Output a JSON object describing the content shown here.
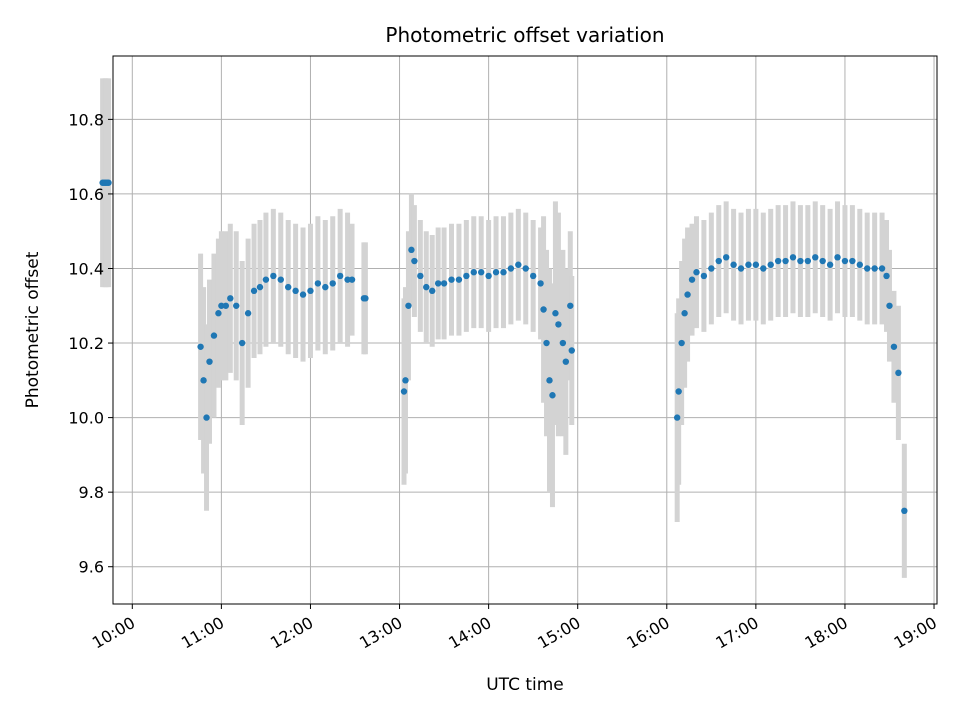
{
  "chart_data": {
    "type": "scatter",
    "title": "Photometric offset variation",
    "xlabel": "UTC time",
    "ylabel": "Photometric offset",
    "xlim": [
      "09:47",
      "19:02"
    ],
    "ylim": [
      9.5,
      10.97
    ],
    "x_ticks": [
      "10:00",
      "11:00",
      "12:00",
      "13:00",
      "14:00",
      "15:00",
      "16:00",
      "17:00",
      "18:00",
      "19:00"
    ],
    "y_ticks": [
      9.6,
      9.8,
      10.0,
      10.2,
      10.4,
      10.6,
      10.8
    ],
    "grid": true,
    "colors": {
      "points": "#1f77b4",
      "error_bars": "#d3d3d3",
      "grid": "#b0b0b0"
    },
    "segments": [
      {
        "x": [
          "09:40",
          "09:41",
          "09:42",
          "09:43",
          "09:44"
        ],
        "y": [
          10.63,
          10.63,
          10.63,
          10.63,
          10.63
        ],
        "err": [
          0.28,
          0.28,
          0.28,
          0.28,
          0.28
        ]
      },
      {
        "x": [
          "10:46",
          "10:48",
          "10:50",
          "10:52",
          "10:55",
          "10:58",
          "11:00",
          "11:03",
          "11:06",
          "11:10",
          "11:14",
          "11:18",
          "11:22",
          "11:26",
          "11:30",
          "11:35",
          "11:40",
          "11:45",
          "11:50",
          "11:55",
          "12:00",
          "12:05",
          "12:10",
          "12:15",
          "12:20",
          "12:25"
        ],
        "y": [
          10.19,
          10.1,
          10.0,
          10.15,
          10.22,
          10.28,
          10.3,
          10.3,
          10.32,
          10.3,
          10.2,
          10.28,
          10.34,
          10.35,
          10.37,
          10.38,
          10.37,
          10.35,
          10.34,
          10.33,
          10.34,
          10.36,
          10.35,
          10.36,
          10.38,
          10.37
        ],
        "err": [
          0.25,
          0.25,
          0.25,
          0.22,
          0.22,
          0.2,
          0.2,
          0.2,
          0.2,
          0.2,
          0.22,
          0.2,
          0.18,
          0.18,
          0.18,
          0.18,
          0.18,
          0.18,
          0.18,
          0.18,
          0.18,
          0.18,
          0.18,
          0.18,
          0.18,
          0.18
        ]
      },
      {
        "x": [
          "12:28",
          "12:36",
          "12:37"
        ],
        "y": [
          10.37,
          10.32,
          10.32
        ],
        "err": [
          0.15,
          0.15,
          0.15
        ]
      },
      {
        "x": [
          "13:03",
          "13:04",
          "13:06",
          "13:08",
          "13:10",
          "13:14",
          "13:18",
          "13:22",
          "13:26",
          "13:30",
          "13:35",
          "13:40",
          "13:45",
          "13:50",
          "13:55",
          "14:00",
          "14:05",
          "14:10",
          "14:15",
          "14:20",
          "14:25",
          "14:30",
          "14:35"
        ],
        "y": [
          10.07,
          10.1,
          10.3,
          10.45,
          10.42,
          10.38,
          10.35,
          10.34,
          10.36,
          10.36,
          10.37,
          10.37,
          10.38,
          10.39,
          10.39,
          10.38,
          10.39,
          10.39,
          10.4,
          10.41,
          10.4,
          10.38,
          10.36
        ],
        "err": [
          0.25,
          0.25,
          0.2,
          0.15,
          0.15,
          0.15,
          0.15,
          0.15,
          0.15,
          0.15,
          0.15,
          0.15,
          0.15,
          0.15,
          0.15,
          0.15,
          0.15,
          0.15,
          0.15,
          0.15,
          0.15,
          0.15,
          0.15
        ]
      },
      {
        "x": [
          "14:37",
          "14:39",
          "14:41",
          "14:43",
          "14:45",
          "14:47",
          "14:50",
          "14:52",
          "14:55",
          "14:56"
        ],
        "y": [
          10.29,
          10.2,
          10.1,
          10.06,
          10.28,
          10.25,
          10.2,
          10.15,
          10.3,
          10.18
        ],
        "err": [
          0.25,
          0.25,
          0.3,
          0.3,
          0.3,
          0.3,
          0.25,
          0.25,
          0.2,
          0.2
        ]
      },
      {
        "x": [
          "16:07",
          "16:08",
          "16:10",
          "16:12",
          "16:14",
          "16:17",
          "16:20",
          "16:25",
          "16:30",
          "16:35",
          "16:40",
          "16:45",
          "16:50",
          "16:55",
          "17:00",
          "17:05",
          "17:10",
          "17:15",
          "17:20",
          "17:25",
          "17:30",
          "17:35",
          "17:40",
          "17:45",
          "17:50",
          "17:55",
          "18:00",
          "18:05",
          "18:10",
          "18:15",
          "18:20",
          "18:25",
          "18:28",
          "18:30",
          "18:33",
          "18:36"
        ],
        "y": [
          10.0,
          10.07,
          10.2,
          10.28,
          10.33,
          10.37,
          10.39,
          10.38,
          10.4,
          10.42,
          10.43,
          10.41,
          10.4,
          10.41,
          10.41,
          10.4,
          10.41,
          10.42,
          10.42,
          10.43,
          10.42,
          10.42,
          10.43,
          10.42,
          10.41,
          10.43,
          10.42,
          10.42,
          10.41,
          10.4,
          10.4,
          10.4,
          10.38,
          10.3,
          10.19,
          10.12
        ],
        "err": [
          0.28,
          0.25,
          0.22,
          0.2,
          0.18,
          0.15,
          0.15,
          0.15,
          0.15,
          0.15,
          0.15,
          0.15,
          0.15,
          0.15,
          0.15,
          0.15,
          0.15,
          0.15,
          0.15,
          0.15,
          0.15,
          0.15,
          0.15,
          0.15,
          0.15,
          0.15,
          0.15,
          0.15,
          0.15,
          0.15,
          0.15,
          0.15,
          0.15,
          0.15,
          0.15,
          0.18
        ]
      },
      {
        "x": [
          "18:40"
        ],
        "y": [
          9.75
        ],
        "err": [
          0.18
        ]
      }
    ]
  }
}
